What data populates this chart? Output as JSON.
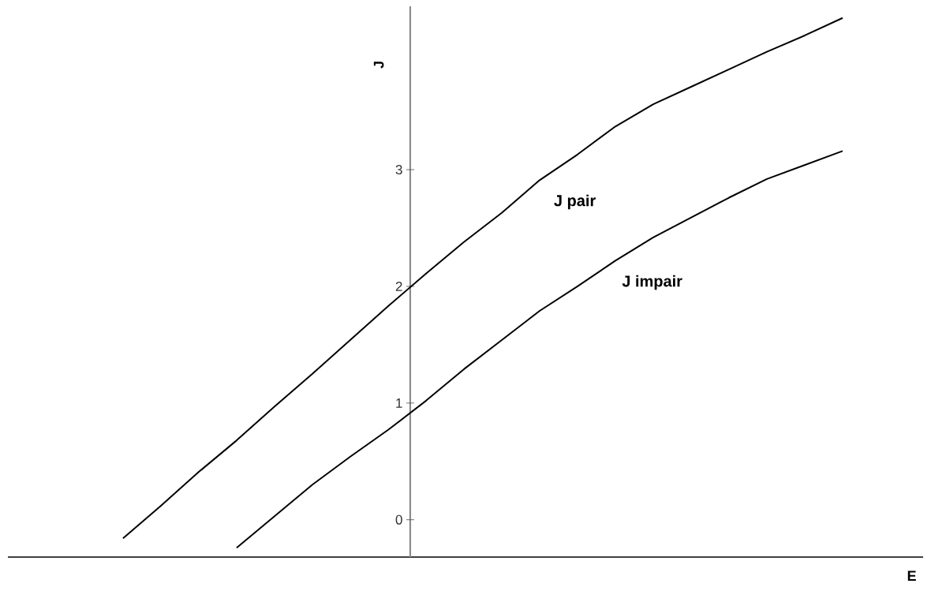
{
  "chart_data": {
    "type": "line",
    "xlabel": "E",
    "ylabel": "J",
    "categories": [
      null,
      null,
      null,
      null,
      null,
      null,
      null,
      null,
      null,
      null,
      null,
      null,
      null,
      null,
      null,
      null,
      null,
      null,
      null,
      null
    ],
    "series": [
      {
        "name": "J pair",
        "color": "#000000",
        "values": [
          -0.16,
          0.12,
          0.41,
          0.68,
          0.97,
          1.25,
          1.54,
          1.83,
          2.11,
          2.38,
          2.63,
          2.91,
          3.13,
          3.37,
          3.56,
          3.71,
          3.86,
          4.01,
          4.15,
          4.3
        ]
      },
      {
        "name": "J impair",
        "color": "#000000",
        "values": [
          null,
          null,
          null,
          -0.24,
          0.03,
          0.3,
          0.54,
          0.77,
          1.02,
          1.29,
          1.54,
          1.79,
          2.0,
          2.22,
          2.42,
          2.59,
          2.76,
          2.92,
          3.04,
          3.16
        ]
      }
    ],
    "ylim": [
      -0.32,
      4.4
    ],
    "yticks": [
      0,
      1,
      2,
      3
    ],
    "tick_labels": "y"
  }
}
